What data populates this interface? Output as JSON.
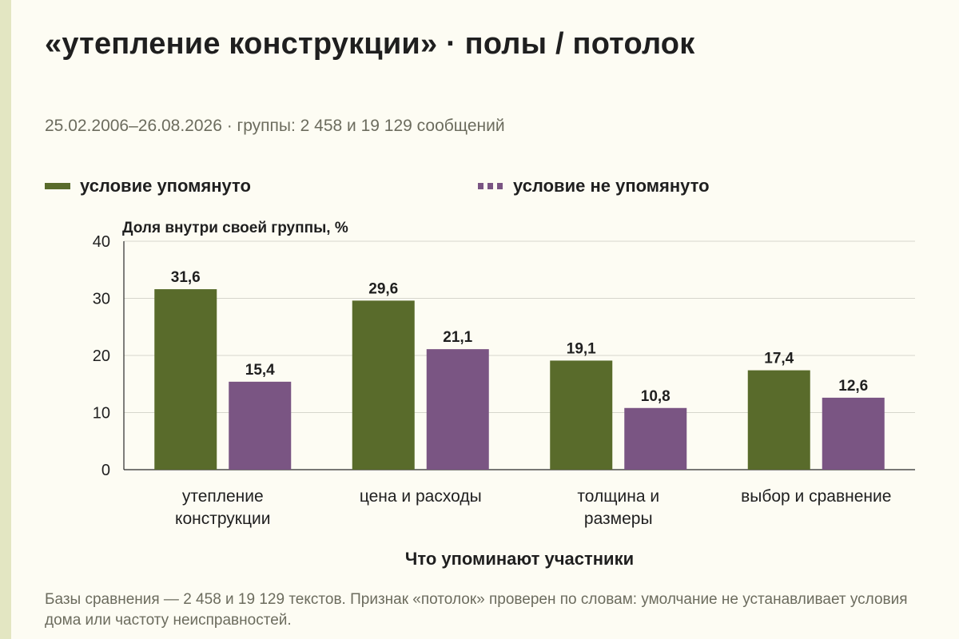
{
  "title": "«утепление конструкции» · полы / потолок",
  "subtitle": "25.02.2006–26.08.2026 · группы: 2 458 и 19 129 сообщений",
  "footnote": "Базы сравнения — 2 458 и 19 129 текстов. Признак «потолок» проверен по словам: умолчание не устанавливает условия дома или частоту неисправностей.",
  "chart_data": {
    "type": "bar",
    "categories": [
      [
        "утепление",
        "конструкции"
      ],
      [
        "цена и расходы"
      ],
      [
        "толщина и",
        "размеры"
      ],
      [
        "выбор и сравнение"
      ]
    ],
    "series": [
      {
        "name": "условие упомянуто",
        "color": "#596b2b",
        "values": [
          31.6,
          29.6,
          19.1,
          17.4
        ],
        "labels": [
          "31,6",
          "29,6",
          "19,1",
          "17,4"
        ]
      },
      {
        "name": "условие не упомянуто",
        "color": "#7a5583",
        "values": [
          15.4,
          21.1,
          10.8,
          12.6
        ],
        "labels": [
          "15,4",
          "21,1",
          "10,8",
          "12,6"
        ]
      }
    ],
    "ylabel": "Доля внутри своей группы, %",
    "xlabel": "Что упоминают участники",
    "ylim": [
      0,
      40
    ],
    "yticks": [
      0,
      10,
      20,
      30,
      40
    ],
    "grid": true,
    "legend_position": "top"
  }
}
